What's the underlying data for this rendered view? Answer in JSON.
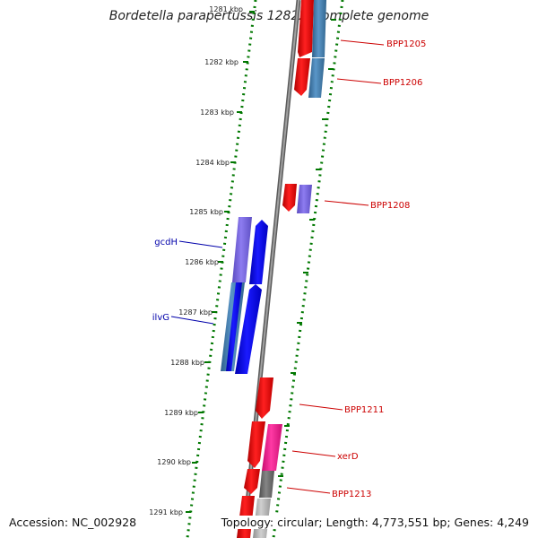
{
  "header": {
    "title": "Bordetella parapertussis 12822, complete genome"
  },
  "footer": {
    "accession": "Accession: NC_002928",
    "summary": "Topology: circular; Length: 4,773,551 bp; Genes: 4,249"
  },
  "map": {
    "tick_labels": [
      {
        "label": "1281 kbp",
        "muted": true
      },
      {
        "label": "1282 kbp"
      },
      {
        "label": "1283 kbp"
      },
      {
        "label": "1284 kbp"
      },
      {
        "label": "1285 kbp"
      },
      {
        "label": "1286 kbp"
      },
      {
        "label": "1287 kbp"
      },
      {
        "label": "1288 kbp"
      },
      {
        "label": "1289 kbp"
      },
      {
        "label": "1290 kbp"
      },
      {
        "label": "1291 kbp"
      }
    ],
    "genes": [
      {
        "name": "BPP1205",
        "color": "#cc0000"
      },
      {
        "name": "BPP1206",
        "color": "#cc0000"
      },
      {
        "name": "BPP1208",
        "color": "#cc0000"
      },
      {
        "name": "gcdH",
        "color": "#0000aa"
      },
      {
        "name": "ilvG",
        "color": "#0000aa"
      },
      {
        "name": "BPP1211",
        "color": "#cc0000"
      },
      {
        "name": "xerD",
        "color": "#cc0000"
      },
      {
        "name": "BPP1213",
        "color": "#cc0000"
      }
    ],
    "colors": {
      "cds_red": "#ff0000",
      "cds_blue": "#0000ff",
      "cds_steelblue": "#4682b4",
      "cds_purple": "#7b68ee",
      "cds_magenta": "#ff1493",
      "cds_gray": "#707070",
      "cds_lightgray": "#b0b0b0",
      "tick_green": "#007700",
      "backbone": "#808080"
    }
  }
}
